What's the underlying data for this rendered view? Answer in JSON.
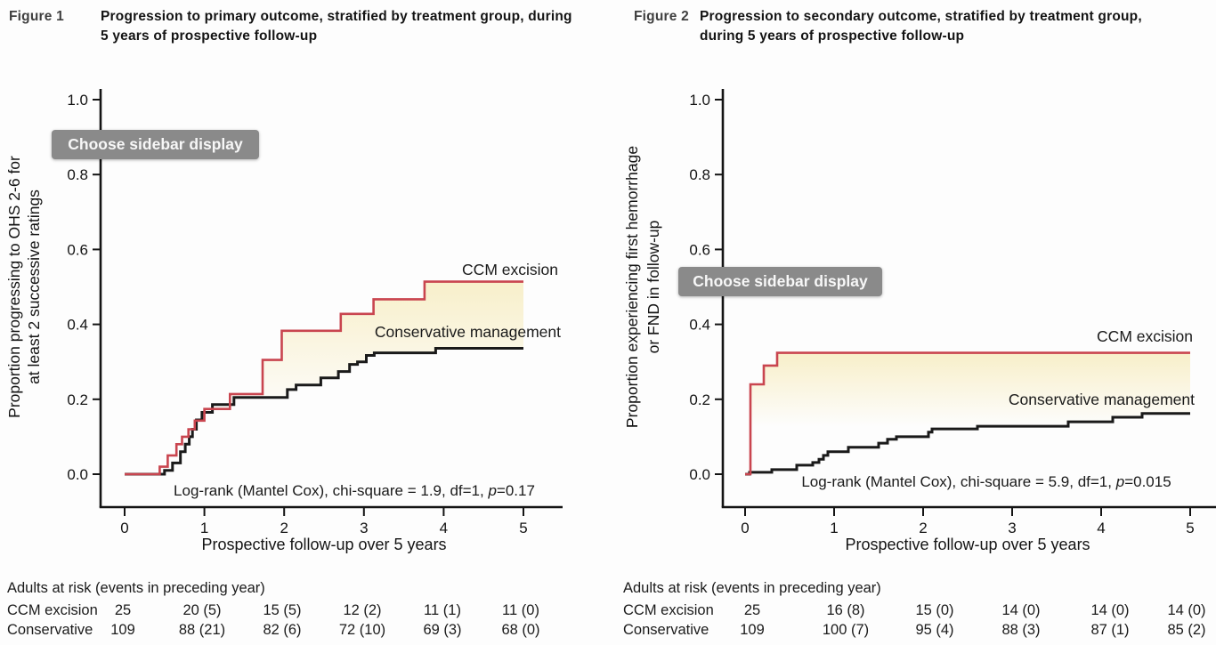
{
  "page": {
    "background": "#fdfdfd"
  },
  "figures": [
    {
      "tag": "Figure 1",
      "title": "Progression to primary outcome, stratified by treatment group, during 5 years of prospective follow-up",
      "overlay_button": "Choose sidebar display"
    },
    {
      "tag": "Figure 2",
      "title": "Progression to secondary outcome, stratified by treatment group, during 5 years of prospective follow-up",
      "overlay_button": "Choose sidebar display"
    }
  ],
  "colors": {
    "ccm_excision": "#c9454f",
    "conservative": "#1a1a1a",
    "between_fill": "#f7edc2",
    "axis": "#141414"
  },
  "chart_data": [
    {
      "type": "line",
      "subtype": "kaplan_meier_step",
      "title": "Progression to primary outcome, stratified by treatment group, during 5 years of prospective follow-up",
      "xlabel": "Prospective follow-up over 5 years",
      "ylabel_lines": [
        "Proportion progressing to OHS 2-6 for",
        "at least 2 successive ratings"
      ],
      "xlim": [
        0,
        5
      ],
      "ylim": [
        0,
        1.0
      ],
      "xticks": [
        0,
        1,
        2,
        3,
        4,
        5
      ],
      "yticks": [
        0.0,
        0.2,
        0.4,
        0.6,
        0.8,
        1.0
      ],
      "ytick_labels": [
        "0.0",
        "0.2",
        "0.4",
        "0.6",
        "0.8",
        "1.0"
      ],
      "grid": false,
      "legend_position": "curve-end-labels",
      "series": [
        {
          "name": "CCM excision",
          "color": "#c9454f",
          "steps": [
            [
              0,
              0
            ],
            [
              0.44,
              0.02
            ],
            [
              0.54,
              0.05
            ],
            [
              0.65,
              0.08
            ],
            [
              0.72,
              0.1
            ],
            [
              0.8,
              0.12
            ],
            [
              0.88,
              0.143
            ],
            [
              1.0,
              0.174
            ],
            [
              1.32,
              0.214
            ],
            [
              1.73,
              0.305
            ],
            [
              1.97,
              0.383
            ],
            [
              2.71,
              0.428
            ],
            [
              3.12,
              0.467
            ],
            [
              3.76,
              0.514
            ],
            [
              5,
              0.514
            ]
          ]
        },
        {
          "name": "Conservative management",
          "color": "#1a1a1a",
          "steps": [
            [
              0,
              0
            ],
            [
              0.5,
              0.01
            ],
            [
              0.6,
              0.03
            ],
            [
              0.7,
              0.06
            ],
            [
              0.76,
              0.08
            ],
            [
              0.81,
              0.1
            ],
            [
              0.85,
              0.12
            ],
            [
              0.9,
              0.145
            ],
            [
              0.97,
              0.165
            ],
            [
              1.1,
              0.186
            ],
            [
              1.37,
              0.205
            ],
            [
              2.04,
              0.226
            ],
            [
              2.15,
              0.238
            ],
            [
              2.46,
              0.257
            ],
            [
              2.68,
              0.274
            ],
            [
              2.82,
              0.293
            ],
            [
              2.92,
              0.3
            ],
            [
              3.03,
              0.317
            ],
            [
              3.13,
              0.324
            ],
            [
              3.9,
              0.336
            ],
            [
              5,
              0.336
            ]
          ]
        }
      ],
      "annotation": {
        "prefix": "Log-rank (Mantel Cox), chi-square = 1.9, df=1, ",
        "p_italic": "p",
        "suffix": "=0.17"
      },
      "risk_table": {
        "header": "Adults at risk (events in preceding year)",
        "rows": [
          {
            "label": "CCM excision",
            "values": [
              "25",
              "20 (5)",
              "15 (5)",
              "12 (2)",
              "11 (1)",
              "11 (0)"
            ]
          },
          {
            "label": "Conservative",
            "values": [
              "109",
              "88 (21)",
              "82 (6)",
              "72 (10)",
              "69 (3)",
              "68 (0)"
            ]
          }
        ]
      }
    },
    {
      "type": "line",
      "subtype": "kaplan_meier_step",
      "title": "Progression to secondary outcome, stratified by treatment group, during 5 years of prospective follow-up",
      "xlabel": "Prospective follow-up over 5 years",
      "ylabel_lines": [
        "Proportion experiencing first hemorrhage",
        "or FND in follow-up"
      ],
      "xlim": [
        0,
        5
      ],
      "ylim": [
        0,
        1.0
      ],
      "xticks": [
        0,
        1,
        2,
        3,
        4,
        5
      ],
      "yticks": [
        0.0,
        0.2,
        0.4,
        0.6,
        0.8,
        1.0
      ],
      "ytick_labels": [
        "0.0",
        "0.2",
        "0.4",
        "0.6",
        "0.8",
        "1.0"
      ],
      "grid": false,
      "legend_position": "curve-end-labels",
      "series": [
        {
          "name": "CCM excision",
          "color": "#c9454f",
          "steps": [
            [
              0,
              0
            ],
            [
              0.06,
              0.24
            ],
            [
              0.21,
              0.29
            ],
            [
              0.36,
              0.324
            ],
            [
              5,
              0.324
            ]
          ]
        },
        {
          "name": "Conservative management",
          "color": "#1a1a1a",
          "steps": [
            [
              0,
              0
            ],
            [
              0.05,
              0.005
            ],
            [
              0.3,
              0.012
            ],
            [
              0.58,
              0.024
            ],
            [
              0.76,
              0.031
            ],
            [
              0.83,
              0.04
            ],
            [
              0.88,
              0.05
            ],
            [
              0.93,
              0.06
            ],
            [
              1.16,
              0.072
            ],
            [
              1.5,
              0.083
            ],
            [
              1.6,
              0.093
            ],
            [
              1.7,
              0.1
            ],
            [
              2.06,
              0.112
            ],
            [
              2.1,
              0.121
            ],
            [
              2.61,
              0.128
            ],
            [
              3.63,
              0.14
            ],
            [
              4.13,
              0.152
            ],
            [
              4.46,
              0.162
            ],
            [
              5,
              0.162
            ]
          ]
        }
      ],
      "annotation": {
        "prefix": "Log-rank (Mantel Cox), chi-square = 5.9, df=1, ",
        "p_italic": "p",
        "suffix": "=0.015"
      },
      "risk_table": {
        "header": "Adults at risk (events in preceding year)",
        "rows": [
          {
            "label": "CCM excision",
            "values": [
              "25",
              "16 (8)",
              "15 (0)",
              "14 (0)",
              "14 (0)",
              "14 (0)"
            ]
          },
          {
            "label": "Conservative",
            "values": [
              "109",
              "100 (7)",
              "95 (4)",
              "88 (3)",
              "87 (1)",
              "85 (2)"
            ]
          }
        ]
      }
    }
  ]
}
